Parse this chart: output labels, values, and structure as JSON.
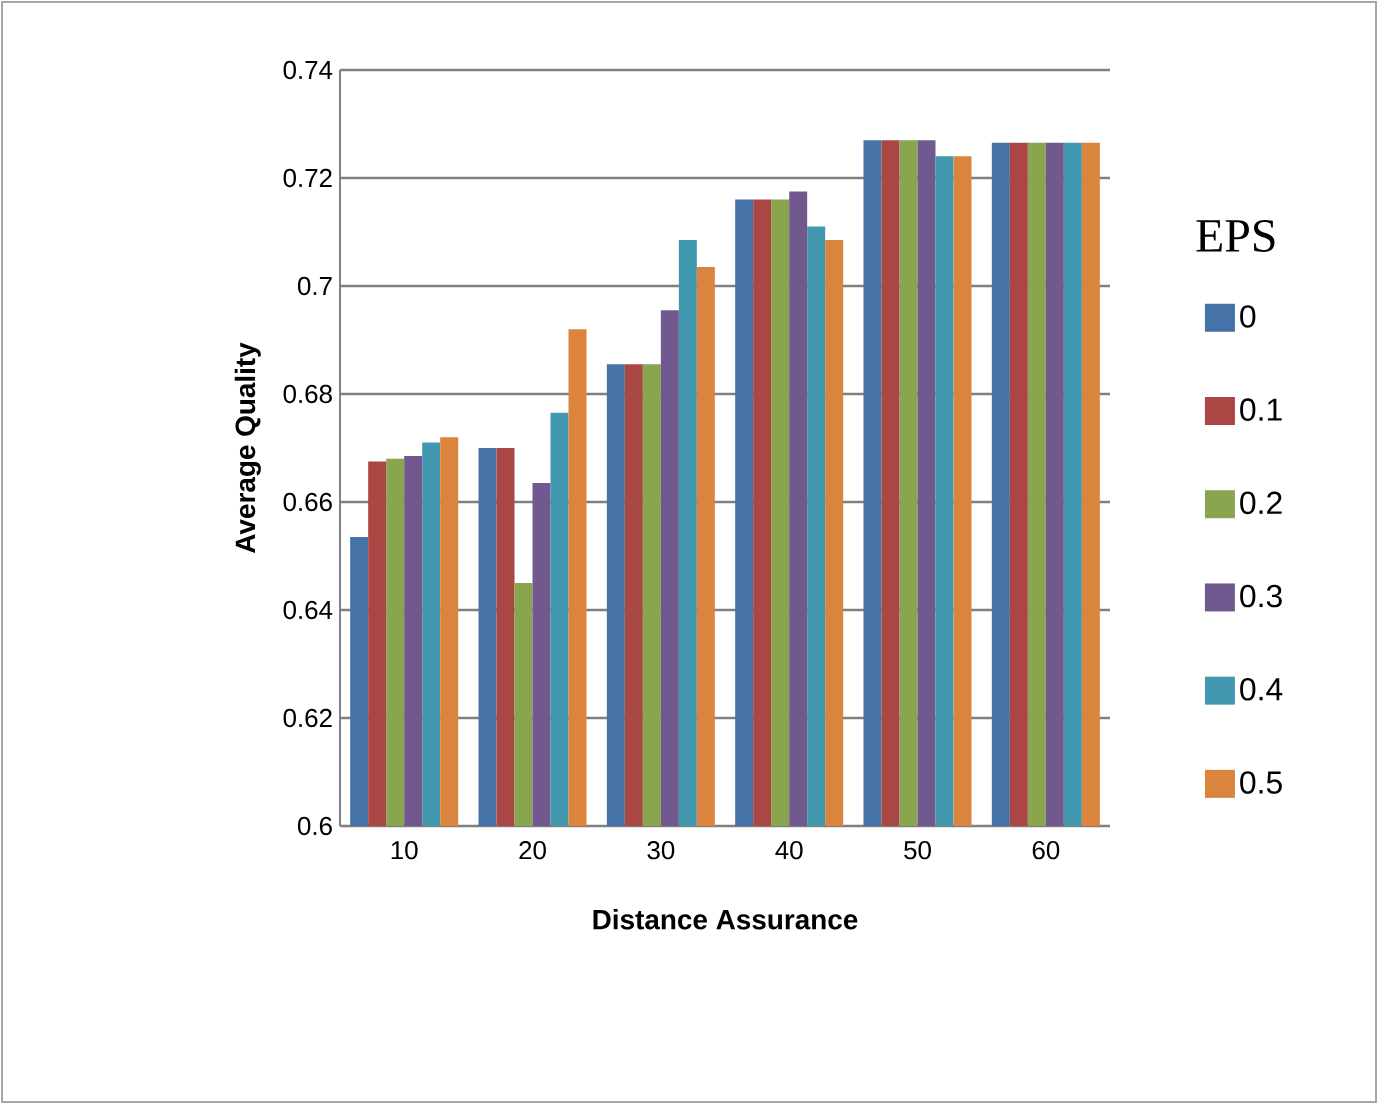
{
  "chart_data": {
    "type": "bar",
    "xlabel": "Distance Assurance",
    "ylabel": "Average Quality",
    "legend_title": "EPS",
    "categories": [
      "10",
      "20",
      "30",
      "40",
      "50",
      "60"
    ],
    "series": [
      {
        "name": "0",
        "color": "#4572a7",
        "values": [
          0.6535,
          0.67,
          0.6855,
          0.716,
          0.727,
          0.7265
        ]
      },
      {
        "name": "0.1",
        "color": "#aa4643",
        "values": [
          0.6675,
          0.67,
          0.6855,
          0.716,
          0.727,
          0.7265
        ]
      },
      {
        "name": "0.2",
        "color": "#89a54e",
        "values": [
          0.668,
          0.645,
          0.6855,
          0.716,
          0.727,
          0.7265
        ]
      },
      {
        "name": "0.3",
        "color": "#71588f",
        "values": [
          0.6685,
          0.6635,
          0.6955,
          0.7175,
          0.727,
          0.7265
        ]
      },
      {
        "name": "0.4",
        "color": "#4198af",
        "values": [
          0.671,
          0.6765,
          0.7085,
          0.711,
          0.724,
          0.7265
        ]
      },
      {
        "name": "0.5",
        "color": "#db843d",
        "values": [
          0.672,
          0.692,
          0.7035,
          0.7085,
          0.724,
          0.7265
        ]
      }
    ],
    "ylim": [
      0.6,
      0.74
    ],
    "yticks": [
      0.6,
      0.62,
      0.64,
      0.66,
      0.68,
      0.7,
      0.72,
      0.74
    ],
    "grid": "y",
    "legend": "right"
  }
}
